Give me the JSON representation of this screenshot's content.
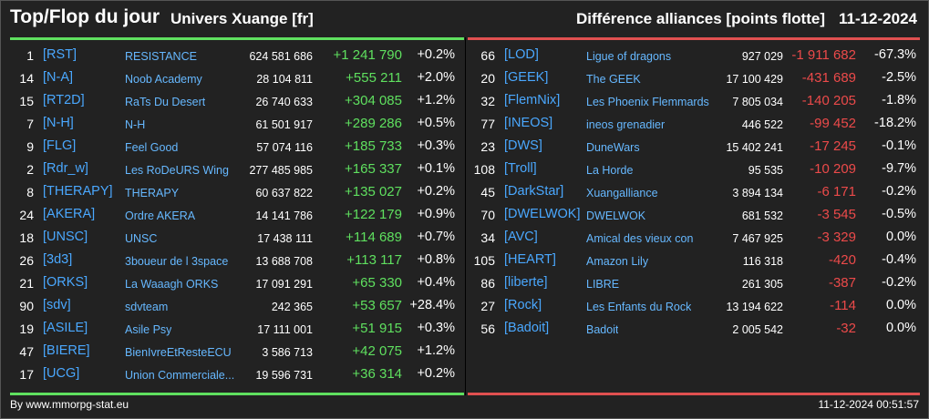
{
  "header": {
    "title": "Top/Flop du jour",
    "universe": "Univers Xuange [fr]",
    "diff_title": "Différence alliances [points flotte]",
    "date": "11-12-2024"
  },
  "colors": {
    "positive": "#5fe05f",
    "negative": "#ec4a4a",
    "tag": "#4aa8ff"
  },
  "top": [
    {
      "rank": "1",
      "tag": "[RST]",
      "name": "RESISTANCE",
      "points": "624 581 686",
      "diff": "+1 241 790",
      "pct": "+0.2%"
    },
    {
      "rank": "14",
      "tag": "[N-A]",
      "name": "Noob Academy",
      "points": "28 104 811",
      "diff": "+555 211",
      "pct": "+2.0%"
    },
    {
      "rank": "15",
      "tag": "[RT2D]",
      "name": "RaTs Du Desert",
      "points": "26 740 633",
      "diff": "+304 085",
      "pct": "+1.2%"
    },
    {
      "rank": "7",
      "tag": "[N-H]",
      "name": "N-H",
      "points": "61 501 917",
      "diff": "+289 286",
      "pct": "+0.5%"
    },
    {
      "rank": "9",
      "tag": "[FLG]",
      "name": "Feel Good",
      "points": "57 074 116",
      "diff": "+185 733",
      "pct": "+0.3%"
    },
    {
      "rank": "2",
      "tag": "[Rdr_w]",
      "name": "Les RoDeURS Wing",
      "points": "277 485 985",
      "diff": "+165 337",
      "pct": "+0.1%"
    },
    {
      "rank": "8",
      "tag": "[THERAPY]",
      "name": "THERAPY",
      "points": "60 637 822",
      "diff": "+135 027",
      "pct": "+0.2%"
    },
    {
      "rank": "24",
      "tag": "[AKERA]",
      "name": "Ordre AKERA",
      "points": "14 141 786",
      "diff": "+122 179",
      "pct": "+0.9%"
    },
    {
      "rank": "18",
      "tag": "[UNSC]",
      "name": "UNSC",
      "points": "17 438 111",
      "diff": "+114 689",
      "pct": "+0.7%"
    },
    {
      "rank": "26",
      "tag": "[3d3]",
      "name": "3boueur de l 3space",
      "points": "13 688 708",
      "diff": "+113 117",
      "pct": "+0.8%"
    },
    {
      "rank": "21",
      "tag": "[ORKS]",
      "name": "La Waaagh ORKS",
      "points": "17 091 291",
      "diff": "+65 330",
      "pct": "+0.4%"
    },
    {
      "rank": "90",
      "tag": "[sdv]",
      "name": "sdvteam",
      "points": "242 365",
      "diff": "+53 657",
      "pct": "+28.4%"
    },
    {
      "rank": "19",
      "tag": "[ASILE]",
      "name": "Asile Psy",
      "points": "17 111 001",
      "diff": "+51 915",
      "pct": "+0.3%"
    },
    {
      "rank": "47",
      "tag": "[BIERE]",
      "name": "BienIvreEtResteECU",
      "points": "3 586 713",
      "diff": "+42 075",
      "pct": "+1.2%"
    },
    {
      "rank": "17",
      "tag": "[UCG]",
      "name": "Union Commerciale...",
      "points": "19 596 731",
      "diff": "+36 314",
      "pct": "+0.2%"
    }
  ],
  "flop": [
    {
      "rank": "66",
      "tag": "[LOD]",
      "name": "Ligue of dragons",
      "points": "927 029",
      "diff": "-1 911 682",
      "pct": "-67.3%"
    },
    {
      "rank": "20",
      "tag": "[GEEK]",
      "name": "The GEEK",
      "points": "17 100 429",
      "diff": "-431 689",
      "pct": "-2.5%"
    },
    {
      "rank": "32",
      "tag": "[FlemNix]",
      "name": "Les Phoenix Flemmards",
      "points": "7 805 034",
      "diff": "-140 205",
      "pct": "-1.8%"
    },
    {
      "rank": "77",
      "tag": "[INEOS]",
      "name": "ineos grenadier",
      "points": "446 522",
      "diff": "-99 452",
      "pct": "-18.2%"
    },
    {
      "rank": "23",
      "tag": "[DWS]",
      "name": "DuneWars",
      "points": "15 402 241",
      "diff": "-17 245",
      "pct": "-0.1%"
    },
    {
      "rank": "108",
      "tag": "[Troll]",
      "name": "La Horde",
      "points": "95 535",
      "diff": "-10 209",
      "pct": "-9.7%"
    },
    {
      "rank": "45",
      "tag": "[DarkStar]",
      "name": "Xuangalliance",
      "points": "3 894 134",
      "diff": "-6 171",
      "pct": "-0.2%"
    },
    {
      "rank": "70",
      "tag": "[DWELWOK]",
      "name": "DWELWOK",
      "points": "681 532",
      "diff": "-3 545",
      "pct": "-0.5%"
    },
    {
      "rank": "34",
      "tag": "[AVC]",
      "name": "Amical des vieux con",
      "points": "7 467 925",
      "diff": "-3 329",
      "pct": "0.0%"
    },
    {
      "rank": "105",
      "tag": "[HEART]",
      "name": "Amazon Lily",
      "points": "116 318",
      "diff": "-420",
      "pct": "-0.4%"
    },
    {
      "rank": "86",
      "tag": "[liberte]",
      "name": "LIBRE",
      "points": "261 305",
      "diff": "-387",
      "pct": "-0.2%"
    },
    {
      "rank": "27",
      "tag": "[Rock]",
      "name": "Les Enfants du Rock",
      "points": "13 194 622",
      "diff": "-114",
      "pct": "0.0%"
    },
    {
      "rank": "56",
      "tag": "[Badoit]",
      "name": "Badoit",
      "points": "2 005 542",
      "diff": "-32",
      "pct": "0.0%"
    }
  ],
  "footer": {
    "credit": "By www.mmorpg-stat.eu",
    "timestamp": "11-12-2024 00:51:57"
  }
}
